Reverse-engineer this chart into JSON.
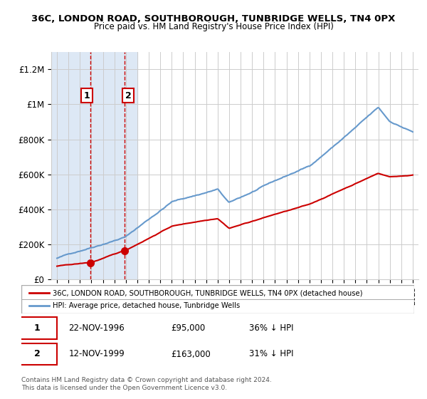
{
  "title_line1": "36C, LONDON ROAD, SOUTHBOROUGH, TUNBRIDGE WELLS, TN4 0PX",
  "title_line2": "Price paid vs. HM Land Registry's House Price Index (HPI)",
  "legend_label_red": "36C, LONDON ROAD, SOUTHBOROUGH, TUNBRIDGE WELLS, TN4 0PX (detached house)",
  "legend_label_blue": "HPI: Average price, detached house, Tunbridge Wells",
  "footnote": "Contains HM Land Registry data © Crown copyright and database right 2024.\nThis data is licensed under the Open Government Licence v3.0.",
  "transaction1_label": "1",
  "transaction1_date": "22-NOV-1996",
  "transaction1_price": "£95,000",
  "transaction1_hpi": "36% ↓ HPI",
  "transaction2_label": "2",
  "transaction2_date": "12-NOV-1999",
  "transaction2_price": "£163,000",
  "transaction2_hpi": "31% ↓ HPI",
  "transaction1_x": 1996.9,
  "transaction1_y": 95000,
  "transaction2_x": 1999.9,
  "transaction2_y": 163000,
  "ylim": [
    0,
    1300000
  ],
  "xlim": [
    1993.5,
    2025.5
  ],
  "bg_shade_x1": 1993.5,
  "bg_shade_x2": 2001.0,
  "red_color": "#cc0000",
  "blue_color": "#6699cc",
  "shade_color": "#dde8f5",
  "grid_color": "#cccccc",
  "vline1_x": 1996.9,
  "vline2_x": 1999.9
}
